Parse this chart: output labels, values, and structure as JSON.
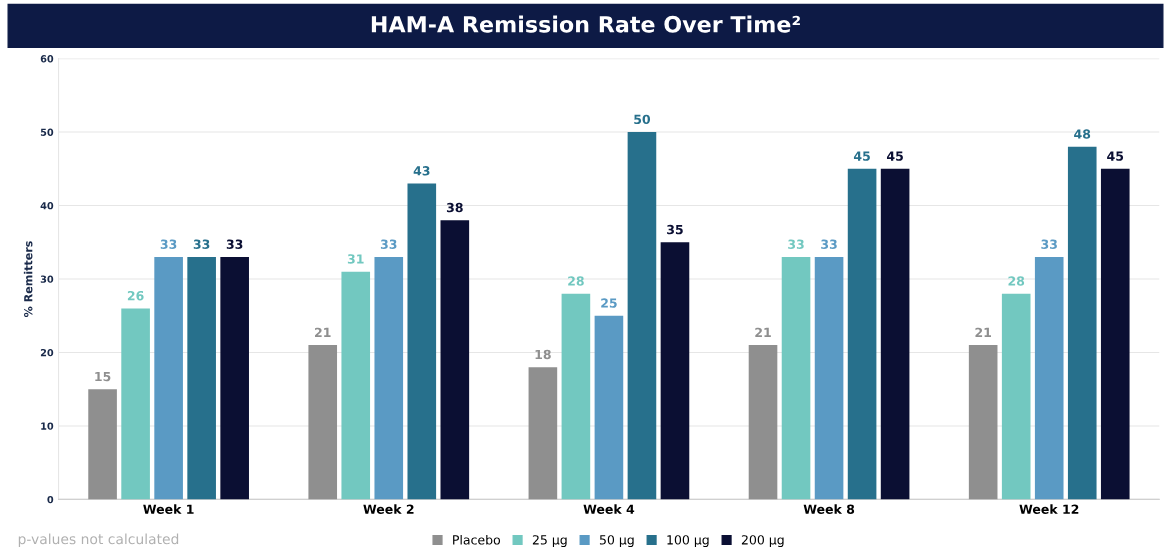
{
  "chart_data": {
    "type": "bar",
    "title": "HAM-A Remission Rate Over Time²",
    "ylabel": "% Remitters",
    "categories": [
      "Week 1",
      "Week 2",
      "Week 4",
      "Week 8",
      "Week 12"
    ],
    "series": [
      {
        "name": "Placebo",
        "color": "#8f8f8f",
        "values": [
          15,
          21,
          18,
          21,
          21
        ]
      },
      {
        "name": "25 µg",
        "color": "#72c8c0",
        "values": [
          26,
          31,
          28,
          33,
          28
        ]
      },
      {
        "name": "50 µg",
        "color": "#5a9ac4",
        "values": [
          33,
          33,
          25,
          33,
          33
        ]
      },
      {
        "name": "100 µg",
        "color": "#27708c",
        "values": [
          33,
          43,
          50,
          45,
          48
        ]
      },
      {
        "name": "200 µg",
        "color": "#0b0f33",
        "values": [
          33,
          38,
          35,
          45,
          45
        ]
      }
    ],
    "ylim": [
      0,
      60
    ],
    "yticks": [
      0,
      10,
      20,
      30,
      40,
      50,
      60
    ],
    "grid": "y",
    "legend": "bottom",
    "data_labels": true,
    "annotations": [
      "p-values not calculated"
    ]
  }
}
